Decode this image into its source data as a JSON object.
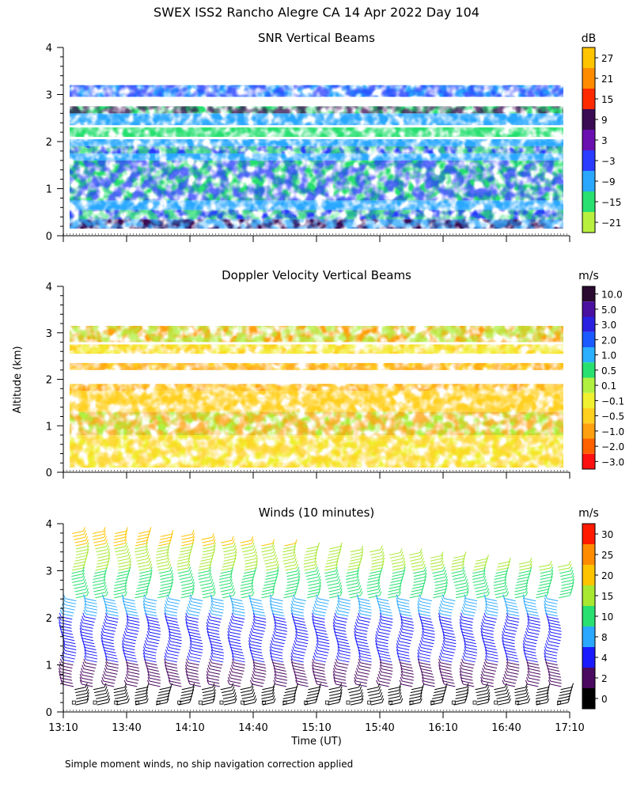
{
  "figure": {
    "title": "SWEX ISS2 Rancho Alegre CA  14 Apr 2022 Day 104",
    "ylabel_shared": "Altitude (km)",
    "xlabel": "Time (UT)",
    "footnote": "Simple moment winds, no ship navigation correction applied"
  },
  "chart_data": [
    {
      "type": "heatmap",
      "title": "SNR Vertical Beams",
      "colorbar_unit": "dB",
      "colorbar_labels": [
        "27",
        "21",
        "15",
        "9",
        "3",
        "−3",
        "−9",
        "−15",
        "−21"
      ],
      "colorbar_colors": [
        "#ffc400",
        "#ff8c00",
        "#ff2a00",
        "#3a0a52",
        "#6a10b0",
        "#2a3cff",
        "#2aa8ff",
        "#28e070",
        "#b8f040"
      ],
      "xlim_minutes": [
        0,
        240
      ],
      "ylim_km": [
        0,
        4
      ],
      "yticks": [
        "0",
        "1",
        "2",
        "3",
        "4"
      ],
      "layers": [
        {
          "z0": 0.15,
          "z1": 0.35,
          "color": "#3a0a52"
        },
        {
          "z0": 0.35,
          "z1": 0.55,
          "color": "#2a3cff"
        },
        {
          "z0": 0.55,
          "z1": 0.75,
          "color": "#2aa8ff"
        },
        {
          "z0": 0.75,
          "z1": 1.6,
          "color": "#28e070"
        },
        {
          "z0": 1.6,
          "z1": 1.75,
          "color": "#2aa8ff"
        },
        {
          "z0": 1.75,
          "z1": 1.9,
          "color": "#2a3cff"
        },
        {
          "z0": 1.9,
          "z1": 2.05,
          "color": "#2aa8ff"
        },
        {
          "z0": 2.1,
          "z1": 2.3,
          "color": "#28e070"
        },
        {
          "z0": 2.35,
          "z1": 2.6,
          "color": "#2aa8ff"
        },
        {
          "z0": 2.6,
          "z1": 2.75,
          "color": "#28e070"
        },
        {
          "z0": 2.95,
          "z1": 3.2,
          "color": "#2aa8ff"
        }
      ]
    },
    {
      "type": "heatmap",
      "title": "Doppler Velocity Vertical Beams",
      "colorbar_unit": "m/s",
      "colorbar_labels": [
        "10.0",
        "5.0",
        "3.0",
        "2.0",
        "1.0",
        "0.5",
        "0.1",
        "−0.1",
        "−0.5",
        "−1.0",
        "−2.0",
        "−3.0"
      ],
      "colorbar_colors": [
        "#2a0a30",
        "#4a10a0",
        "#2a20e0",
        "#1a5aff",
        "#2ab0ff",
        "#28e070",
        "#b0f040",
        "#f0f030",
        "#ffd020",
        "#ffa010",
        "#ff6000",
        "#ff1010"
      ],
      "xlim_minutes": [
        0,
        240
      ],
      "ylim_km": [
        0,
        4
      ],
      "yticks": [
        "0",
        "1",
        "2",
        "3",
        "4"
      ],
      "layers": [
        {
          "z0": 0.1,
          "z1": 0.8,
          "color": "#f0f030"
        },
        {
          "z0": 0.8,
          "z1": 1.3,
          "color": "#b0f040"
        },
        {
          "z0": 1.3,
          "z1": 1.75,
          "color": "#ffd020"
        },
        {
          "z0": 1.75,
          "z1": 1.9,
          "color": "#ffa010"
        },
        {
          "z0": 2.2,
          "z1": 2.35,
          "color": "#ffd020"
        },
        {
          "z0": 2.55,
          "z1": 2.75,
          "color": "#ffd020"
        },
        {
          "z0": 2.8,
          "z1": 3.15,
          "color": "#ffa010"
        }
      ]
    },
    {
      "type": "scatter",
      "title": "Winds (10 minutes)",
      "colorbar_unit": "m/s",
      "colorbar_labels": [
        "30",
        "25",
        "20",
        "15",
        "10",
        "8",
        "4",
        "2",
        "0"
      ],
      "colorbar_colors": [
        "#ff1a00",
        "#ff8c00",
        "#ffc400",
        "#a8e830",
        "#28e070",
        "#2aa8ff",
        "#1a1aff",
        "#4a0a60",
        "#000000"
      ],
      "xlim_minutes": [
        0,
        240
      ],
      "ylim_km": [
        0,
        4
      ],
      "yticks": [
        "0",
        "1",
        "2",
        "3",
        "4"
      ],
      "xticks": [
        "13:10",
        "13:40",
        "14:10",
        "14:40",
        "15:10",
        "15:40",
        "16:10",
        "16:40",
        "17:10"
      ],
      "profile_minutes": [
        5,
        15,
        25,
        35,
        45,
        55,
        65,
        75,
        85,
        95,
        105,
        115,
        125,
        135,
        145,
        155,
        165,
        175,
        185,
        195,
        205,
        215,
        225,
        235
      ],
      "bands": [
        {
          "z0": 0.1,
          "z1": 0.5,
          "color": "#000000",
          "dir": 1
        },
        {
          "z0": 0.5,
          "z1": 1.0,
          "color": "#4a0a60",
          "dir": -1
        },
        {
          "z0": 1.0,
          "z1": 2.0,
          "color": "#1a1aff",
          "dir": -1
        },
        {
          "z0": 2.0,
          "z1": 2.4,
          "color": "#2aa8ff",
          "dir": -1
        },
        {
          "z0": 2.4,
          "z1": 3.0,
          "color": "#28e070",
          "dir": 1
        },
        {
          "z0": 3.0,
          "z1": 3.5,
          "color": "#a8e830",
          "dir": 1
        },
        {
          "z0": 3.5,
          "z1": 3.8,
          "color": "#ffc400",
          "dir": 1
        }
      ]
    }
  ]
}
